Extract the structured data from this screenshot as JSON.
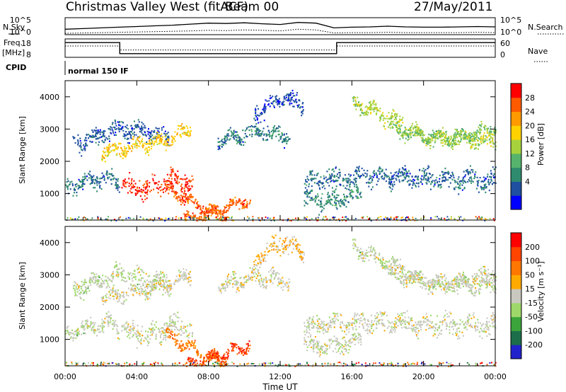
{
  "header": {
    "title": "Christmas Valley West (fitACF)",
    "beam": "Beam 00",
    "date": "27/May/2011"
  },
  "panels": {
    "nsky": {
      "label": "N.Sky",
      "right_label": "N.Search",
      "ticks_left": [
        "10^5",
        "10^0"
      ],
      "ticks_right": [
        "10^5",
        "10^0"
      ]
    },
    "freq": {
      "label": "Freq.",
      "unit": "[MHz]",
      "right_label": "Nave",
      "ticks_left": [
        "18",
        "8"
      ],
      "ticks_right": [
        "60",
        "0"
      ]
    },
    "cpid": {
      "label": "CPID",
      "program": "normal 150 IF"
    }
  },
  "colors": {
    "power": [
      "#0000ff",
      "#1f4fa0",
      "#2e8b6e",
      "#55b36b",
      "#a8d23c",
      "#ffd200",
      "#ff9a00",
      "#ff5a00",
      "#ff0000"
    ],
    "velocity": [
      "#2222cc",
      "#1c6e4a",
      "#3ba53b",
      "#9fd86a",
      "#c8c8c0",
      "#ffaa00",
      "#ff7700",
      "#ff4400",
      "#ff0000"
    ],
    "line": "#000000"
  },
  "chart_data": [
    {
      "type": "line",
      "name": "nsky-nsearch",
      "series": [
        {
          "name": "N.Sky",
          "x": [
            0,
            1,
            2,
            3,
            4,
            5,
            6,
            7,
            8,
            9,
            10,
            11,
            12,
            13,
            14,
            15,
            16,
            17,
            18,
            19,
            20,
            21,
            22,
            23,
            24
          ],
          "values": [
            1.6,
            1.8,
            2.0,
            2.2,
            2.4,
            2.6,
            2.8,
            3.1,
            3.4,
            3.3,
            3.5,
            3.2,
            3.0,
            3.6,
            3.4,
            2.0,
            2.2,
            2.3,
            2.5,
            2.3,
            2.2,
            2.2,
            2.3,
            2.4,
            2.3
          ]
        },
        {
          "name": "N.Search",
          "x": [
            0,
            1,
            2,
            3,
            4,
            5,
            6,
            7,
            8,
            9,
            10,
            11,
            12,
            13,
            14,
            15,
            16,
            17,
            18,
            19,
            20,
            21,
            22,
            23,
            24
          ],
          "values": [
            0.4,
            0.5,
            0.6,
            0.7,
            0.8,
            0.9,
            1.0,
            1.1,
            1.3,
            1.2,
            1.4,
            1.3,
            1.1,
            1.6,
            1.4,
            0.5,
            0.6,
            0.6,
            0.7,
            0.6,
            0.6,
            0.6,
            0.6,
            0.7,
            0.6
          ]
        }
      ],
      "xlabel": "",
      "ylabel": "N.Sky",
      "xlim": [
        0,
        24
      ]
    },
    {
      "type": "line",
      "name": "freq-nave",
      "series": [
        {
          "name": "Freq.",
          "x": [
            0,
            3.05,
            3.05,
            15.15,
            15.15,
            24
          ],
          "values": [
            16,
            16,
            10,
            10,
            16,
            16
          ]
        },
        {
          "name": "Nave",
          "x": [
            0,
            3.05,
            3.05,
            15.15,
            15.15,
            24
          ],
          "values": [
            37,
            37,
            24,
            24,
            37,
            37
          ]
        }
      ],
      "ylabel": "Freq. [MHz]",
      "ylim": [
        8,
        18
      ],
      "y2lim": [
        0,
        60
      ],
      "xlim": [
        0,
        24
      ]
    },
    {
      "type": "heatmap",
      "name": "power",
      "xlabel": "",
      "ylabel": "Slant Range [km]",
      "xlim": [
        0,
        24
      ],
      "ylim": [
        180,
        4500
      ],
      "yticks": [
        1000,
        2000,
        3000,
        4000
      ],
      "colorbar": {
        "label": "Power [dB]",
        "ticks": [
          "28",
          "24",
          "20",
          "16",
          "12",
          "8",
          "4"
        ]
      },
      "bands": [
        {
          "x": [
            0.4,
            3.0,
            5.8
          ],
          "y": [
            2550,
            3050,
            2750
          ],
          "width_km": 380,
          "level": 0.18
        },
        {
          "x": [
            2.0,
            5.5,
            7.0
          ],
          "y": [
            2300,
            2650,
            3050
          ],
          "width_km": 320,
          "level": 0.62
        },
        {
          "x": [
            0.0,
            2.4,
            3.0
          ],
          "y": [
            1200,
            1550,
            1300
          ],
          "width_km": 330,
          "level": 0.22
        },
        {
          "x": [
            3.1,
            4.5,
            6.0,
            7.1
          ],
          "y": [
            1350,
            1100,
            1450,
            1250
          ],
          "width_km": 480,
          "level": 0.9
        },
        {
          "x": [
            5.6,
            7.5,
            9.0
          ],
          "y": [
            1200,
            600,
            250
          ],
          "width_km": 260,
          "level": 0.85
        },
        {
          "x": [
            6.6,
            8.5,
            10.3
          ],
          "y": [
            200,
            500,
            850
          ],
          "width_km": 230,
          "level": 0.82
        },
        {
          "x": [
            8.5,
            10.5,
            12.5
          ],
          "y": [
            2650,
            2950,
            2800
          ],
          "width_km": 350,
          "level": 0.25
        },
        {
          "x": [
            10.5,
            12.2,
            13.3
          ],
          "y": [
            3450,
            4050,
            3700
          ],
          "width_km": 400,
          "level": 0.14
        },
        {
          "x": [
            13.3,
            16.5,
            24.0
          ],
          "y": [
            1400,
            1550,
            1420
          ],
          "width_km": 420,
          "level": 0.2
        },
        {
          "x": [
            13.3,
            14.8,
            16.5
          ],
          "y": [
            900,
            750,
            1050
          ],
          "width_km": 380,
          "level": 0.28
        },
        {
          "x": [
            16.0,
            18.5,
            20.0,
            24.0
          ],
          "y": [
            3900,
            3250,
            2750,
            2650
          ],
          "width_km": 320,
          "level": 0.5
        },
        {
          "x": [
            18.0,
            21.0,
            24.0
          ],
          "y": [
            3050,
            2700,
            3050
          ],
          "width_km": 280,
          "level": 0.45
        }
      ]
    },
    {
      "type": "heatmap",
      "name": "velocity",
      "xlabel": "Time UT",
      "ylabel": "Slant Range [km]",
      "xlim": [
        0,
        24
      ],
      "ylim": [
        180,
        4500
      ],
      "yticks": [
        1000,
        2000,
        3000,
        4000
      ],
      "xticks": [
        "00:00",
        "04:00",
        "08:00",
        "12:00",
        "16:00",
        "20:00",
        "00:00"
      ],
      "colorbar": {
        "label": "Velocity [m s⁻¹]",
        "ticks": [
          "200",
          "100",
          "50",
          "15",
          "-15",
          "-50",
          "-100",
          "-200"
        ]
      },
      "bands": [
        {
          "x": [
            0.4,
            3.0,
            5.8
          ],
          "y": [
            2550,
            3050,
            2750
          ],
          "width_km": 380,
          "level": 0.45
        },
        {
          "x": [
            2.0,
            5.5,
            7.0
          ],
          "y": [
            2300,
            2650,
            3050
          ],
          "width_km": 320,
          "level": 0.5
        },
        {
          "x": [
            0.0,
            2.4,
            3.0
          ],
          "y": [
            1200,
            1550,
            1300
          ],
          "width_km": 330,
          "level": 0.47
        },
        {
          "x": [
            3.1,
            4.5,
            6.0,
            7.1
          ],
          "y": [
            1350,
            1100,
            1450,
            1250
          ],
          "width_km": 480,
          "level": 0.48
        },
        {
          "x": [
            5.6,
            7.5,
            9.0
          ],
          "y": [
            1200,
            600,
            250
          ],
          "width_km": 260,
          "level": 0.72
        },
        {
          "x": [
            6.6,
            8.5,
            10.3
          ],
          "y": [
            200,
            500,
            850
          ],
          "width_km": 230,
          "level": 0.85
        },
        {
          "x": [
            8.5,
            10.5,
            12.5
          ],
          "y": [
            2650,
            2950,
            2800
          ],
          "width_km": 350,
          "level": 0.5
        },
        {
          "x": [
            10.5,
            12.2,
            13.3
          ],
          "y": [
            3450,
            4050,
            3700
          ],
          "width_km": 400,
          "level": 0.6
        },
        {
          "x": [
            13.3,
            16.5,
            24.0
          ],
          "y": [
            1400,
            1550,
            1420
          ],
          "width_km": 420,
          "level": 0.48
        },
        {
          "x": [
            13.3,
            14.8,
            16.5
          ],
          "y": [
            900,
            750,
            1050
          ],
          "width_km": 380,
          "level": 0.48
        },
        {
          "x": [
            16.0,
            18.5,
            20.0,
            24.0
          ],
          "y": [
            3900,
            3250,
            2750,
            2650
          ],
          "width_km": 320,
          "level": 0.47
        },
        {
          "x": [
            18.0,
            21.0,
            24.0
          ],
          "y": [
            3050,
            2700,
            3050
          ],
          "width_km": 280,
          "level": 0.48
        }
      ]
    }
  ]
}
